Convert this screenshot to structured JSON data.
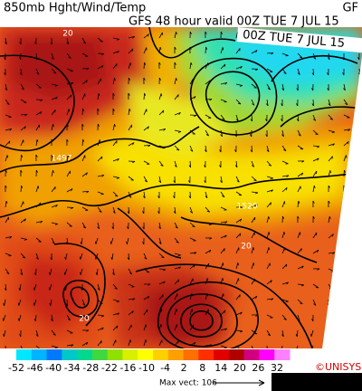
{
  "header": {
    "title": "850mb Hght/Wind/Temp",
    "corner": "GF",
    "subtitle": "GFS 48 hour valid 00Z TUE  7 JUL 15"
  },
  "map": {
    "banner": "00Z TUE  7 JUL 15",
    "labels": [
      "20",
      "1497",
      "1520",
      "20",
      "20"
    ]
  },
  "colorbar": {
    "ticks": [
      -52,
      -46,
      -40,
      -34,
      -28,
      -22,
      -16,
      -10,
      -4,
      2,
      8,
      14,
      20,
      26,
      32
    ],
    "colors": [
      "#00e8ff",
      "#00b4ff",
      "#0078ff",
      "#00c8c8",
      "#00d890",
      "#40d840",
      "#90e000",
      "#d8f000",
      "#ffff00",
      "#ffd000",
      "#ffa000",
      "#ff7000",
      "#ff3000",
      "#e00000",
      "#b00000",
      "#d00080",
      "#ff00ff",
      "#ff80ff"
    ]
  },
  "footer": {
    "credit": "©UNISYS",
    "max_vector": "Max vect: 106"
  }
}
